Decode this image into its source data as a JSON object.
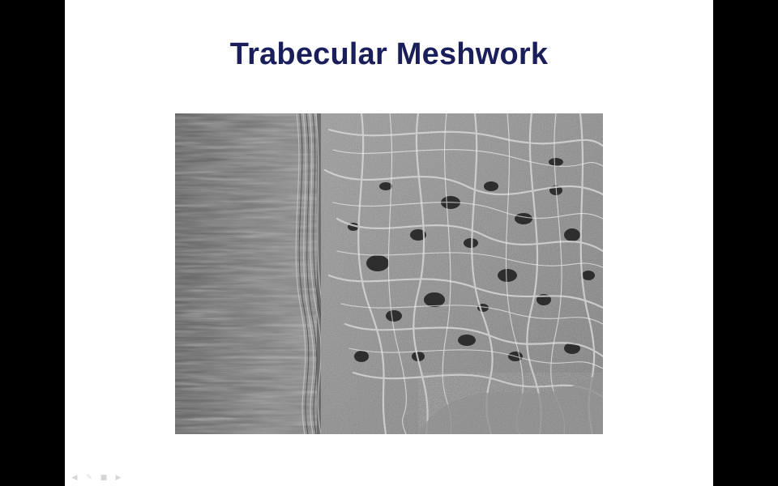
{
  "slide": {
    "title": "Trabecular Meshwork"
  },
  "image": {
    "subject": "scanning electron micrograph"
  },
  "controls": [
    {
      "icon": "previous-arrow-icon"
    },
    {
      "icon": "pen-icon"
    },
    {
      "icon": "menu-icon"
    },
    {
      "icon": "next-arrow-icon"
    }
  ],
  "colors": {
    "background": "#000000",
    "slide": "#ffffff",
    "title": "#1a1f5c"
  }
}
